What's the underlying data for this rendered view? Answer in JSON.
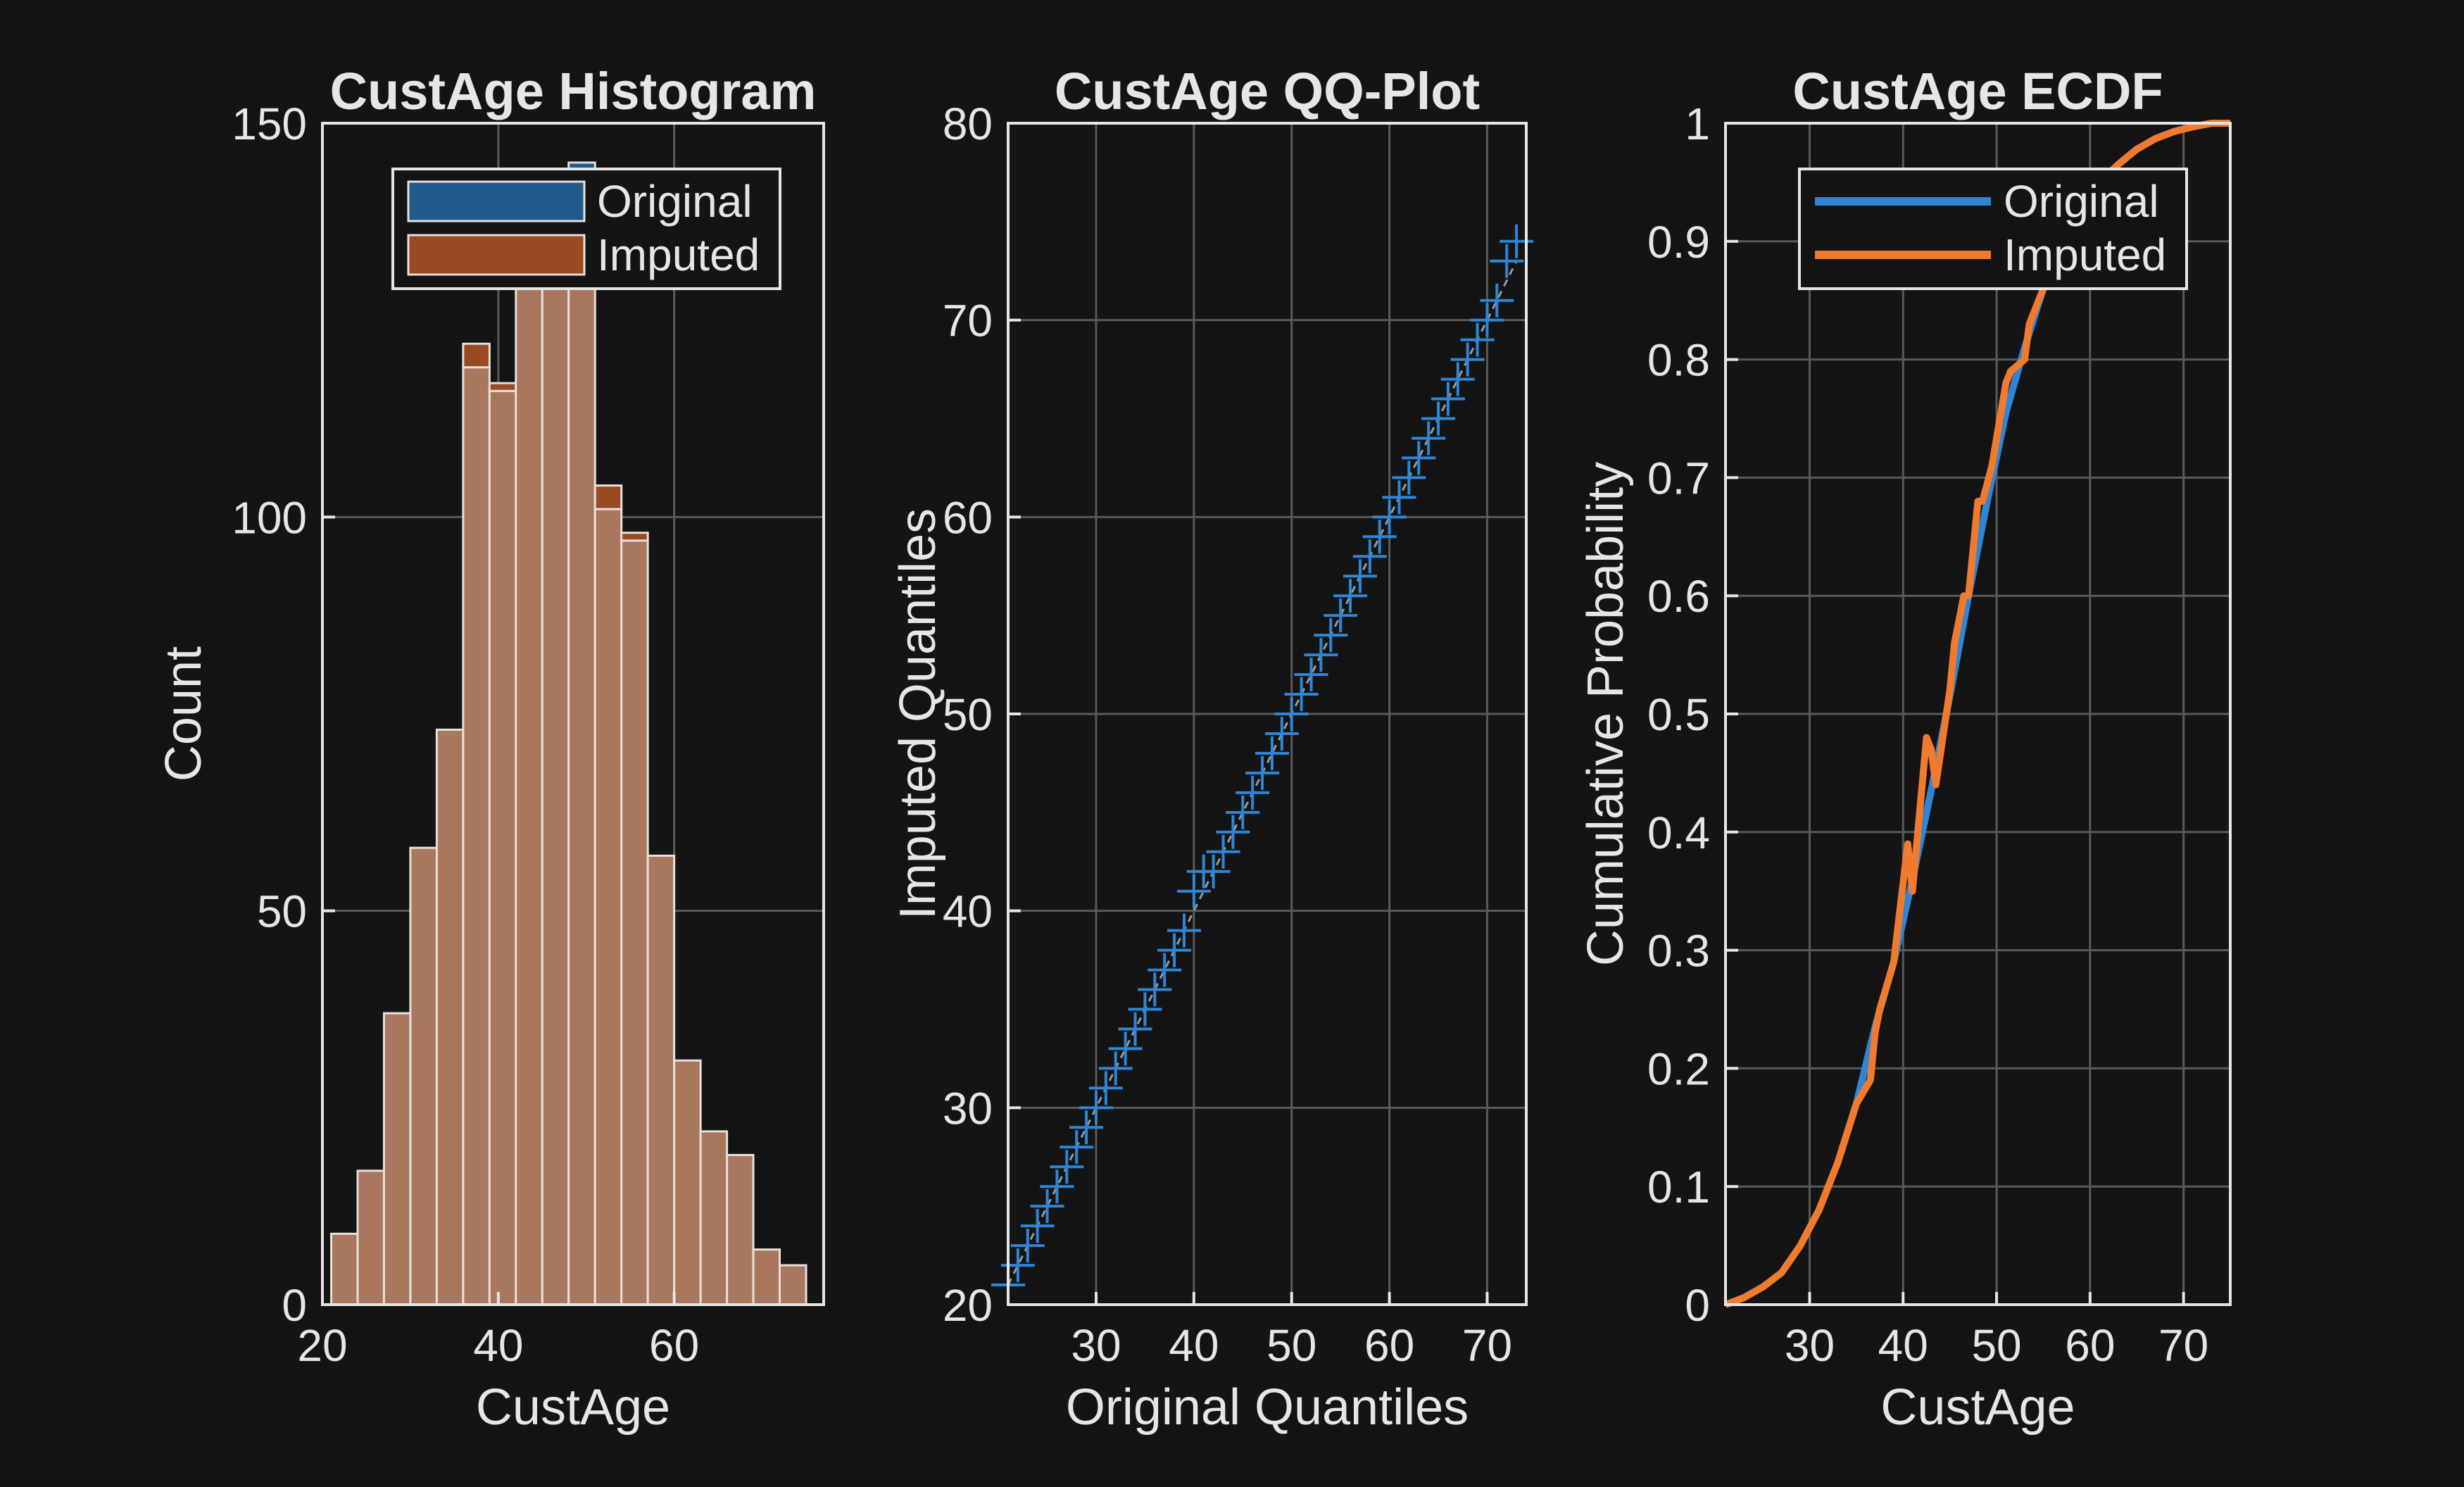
{
  "colors": {
    "background": "#141414",
    "axes": "#e6e6e6",
    "grid": "#5a5a5a",
    "original": "#2f86d6",
    "imputed": "#f07a2e",
    "hist_original_fill": "#1e5a8c",
    "hist_imputed_fill": "#9a4a22",
    "hist_overlap_fill": "#a9765e"
  },
  "chart_data": [
    {
      "type": "bar",
      "title": "CustAge Histogram",
      "xlabel": "CustAge",
      "ylabel": "Count",
      "xlim": [
        20,
        77
      ],
      "ylim": [
        0,
        150
      ],
      "xticks": [
        20,
        40,
        60
      ],
      "yticks": [
        0,
        50,
        100,
        150
      ],
      "bin_edges": [
        21,
        24,
        27,
        30,
        33,
        36,
        39,
        42,
        45,
        48,
        51,
        54,
        57,
        60,
        63,
        66,
        69,
        72,
        75
      ],
      "legend": {
        "position": "top-right"
      },
      "series": [
        {
          "name": "Original",
          "values": [
            9,
            17,
            37,
            58,
            73,
            119,
            116,
            130,
            137,
            145,
            101,
            97,
            57,
            31,
            22,
            19,
            7,
            5
          ]
        },
        {
          "name": "Imputed",
          "values": [
            9,
            17,
            37,
            58,
            73,
            122,
            117,
            130,
            137,
            143,
            104,
            98,
            57,
            31,
            22,
            19,
            7,
            5
          ]
        }
      ],
      "grid": true
    },
    {
      "type": "scatter",
      "title": "CustAge QQ-Plot",
      "xlabel": "Original Quantiles",
      "ylabel": "Imputed Quantiles",
      "xlim": [
        21,
        74
      ],
      "ylim": [
        20,
        80
      ],
      "xticks": [
        30,
        40,
        50,
        60,
        70
      ],
      "yticks": [
        20,
        30,
        40,
        50,
        60,
        70,
        80
      ],
      "marker": "+",
      "x": [
        21,
        22,
        23,
        24,
        25,
        26,
        27,
        28,
        29,
        30,
        31,
        32,
        33,
        34,
        35,
        36,
        37,
        38,
        39,
        40,
        41,
        42,
        43,
        44,
        45,
        46,
        47,
        48,
        49,
        50,
        51,
        52,
        53,
        54,
        55,
        56,
        57,
        58,
        59,
        60,
        61,
        62,
        63,
        64,
        65,
        66,
        67,
        68,
        69,
        70,
        71,
        72,
        73
      ],
      "y": [
        21,
        22,
        23,
        24,
        25,
        26,
        27,
        28,
        29,
        30,
        31,
        32,
        33,
        34,
        35,
        36,
        37,
        38,
        39,
        41,
        42,
        42,
        43,
        44,
        45,
        46,
        47,
        48,
        49,
        50,
        51,
        52,
        53,
        54,
        55,
        56,
        57,
        58,
        59,
        60,
        61,
        62,
        63,
        64,
        65,
        66,
        67,
        68,
        69,
        70,
        71,
        73,
        74
      ],
      "grid": true
    },
    {
      "type": "line",
      "title": "CustAge ECDF",
      "xlabel": "CustAge",
      "ylabel": "Cumulative Probability",
      "xlim": [
        21,
        75
      ],
      "ylim": [
        0,
        1
      ],
      "xticks": [
        30,
        40,
        50,
        60,
        70
      ],
      "yticks": [
        0,
        0.1,
        0.2,
        0.3,
        0.4,
        0.5,
        0.6,
        0.7,
        0.8,
        0.9,
        1
      ],
      "ytick_labels": [
        "0",
        "0.1",
        "0.2",
        "0.3",
        "0.4",
        "0.5",
        "0.6",
        "0.7",
        "0.8",
        "0.9",
        "1"
      ],
      "legend": {
        "position": "top-right"
      },
      "series": [
        {
          "name": "Original",
          "x": [
            21,
            23,
            25,
            27,
            29,
            31,
            33,
            35,
            37,
            39,
            41,
            43,
            45,
            47,
            49,
            51,
            53,
            55,
            57,
            59,
            61,
            63,
            65,
            67,
            69,
            71,
            73,
            75
          ],
          "y": [
            0,
            0.006,
            0.015,
            0.027,
            0.05,
            0.08,
            0.12,
            0.17,
            0.235,
            0.29,
            0.36,
            0.435,
            0.515,
            0.6,
            0.68,
            0.755,
            0.81,
            0.86,
            0.9,
            0.93,
            0.95,
            0.965,
            0.978,
            0.987,
            0.993,
            0.997,
            1,
            1
          ]
        },
        {
          "name": "Imputed",
          "x": [
            21,
            23,
            25,
            27,
            29,
            31,
            33,
            35,
            36.5,
            37,
            37.5,
            39,
            40.5,
            41,
            42.5,
            43,
            43.5,
            45,
            45.5,
            46.5,
            47,
            48,
            48.5,
            49.5,
            51,
            51.5,
            53,
            53.5,
            55,
            57,
            59,
            61,
            63,
            65,
            67,
            69,
            71,
            73,
            75
          ],
          "y": [
            0,
            0.006,
            0.015,
            0.027,
            0.05,
            0.08,
            0.12,
            0.17,
            0.19,
            0.23,
            0.25,
            0.29,
            0.39,
            0.35,
            0.48,
            0.47,
            0.44,
            0.52,
            0.56,
            0.6,
            0.6,
            0.68,
            0.68,
            0.71,
            0.78,
            0.79,
            0.8,
            0.83,
            0.86,
            0.9,
            0.93,
            0.95,
            0.965,
            0.978,
            0.987,
            0.993,
            0.997,
            1,
            1
          ]
        }
      ],
      "grid": true
    }
  ]
}
